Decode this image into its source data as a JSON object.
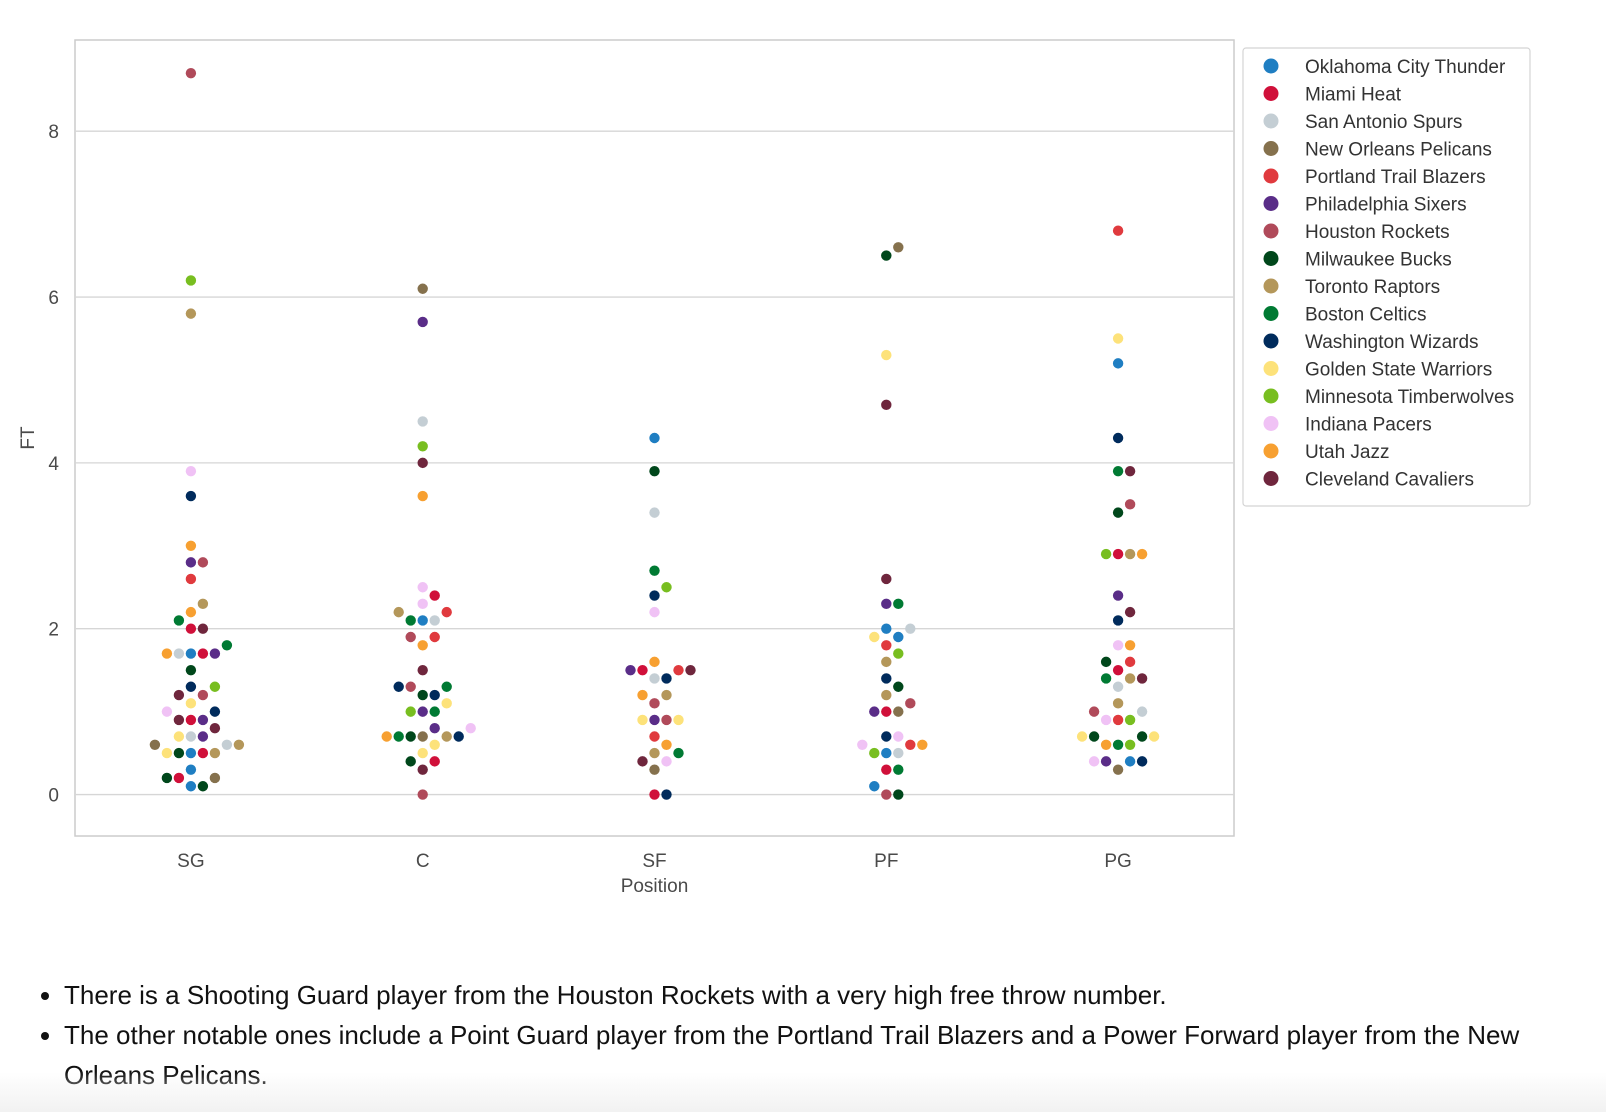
{
  "chart_data": {
    "type": "scatter",
    "xlabel": "Position",
    "ylabel": "FT",
    "categories": [
      "SG",
      "C",
      "SF",
      "PF",
      "PG"
    ],
    "ylim": [
      -0.5,
      9.1
    ],
    "yticks": [
      0,
      2,
      4,
      6,
      8
    ],
    "grid": "horizontal",
    "legend_position": "right",
    "series": [
      {
        "name": "Oklahoma City Thunder",
        "color": "#1f7ec2",
        "points": [
          {
            "x": "SG",
            "y": 1.7
          },
          {
            "x": "SG",
            "y": 0.5
          },
          {
            "x": "SG",
            "y": 0.3
          },
          {
            "x": "SG",
            "y": 0.1
          },
          {
            "x": "C",
            "y": 2.1
          },
          {
            "x": "SF",
            "y": 4.3
          },
          {
            "x": "PF",
            "y": 2.0
          },
          {
            "x": "PF",
            "y": 1.9
          },
          {
            "x": "PF",
            "y": 0.5
          },
          {
            "x": "PF",
            "y": 0.1
          },
          {
            "x": "PG",
            "y": 5.2
          },
          {
            "x": "PG",
            "y": 0.4
          }
        ]
      },
      {
        "name": "Miami Heat",
        "color": "#d0103a",
        "points": [
          {
            "x": "SG",
            "y": 2.0
          },
          {
            "x": "SG",
            "y": 1.7
          },
          {
            "x": "SG",
            "y": 0.9
          },
          {
            "x": "SG",
            "y": 0.5
          },
          {
            "x": "SG",
            "y": 0.2
          },
          {
            "x": "C",
            "y": 2.4
          },
          {
            "x": "C",
            "y": 0.4
          },
          {
            "x": "SF",
            "y": 0.0
          },
          {
            "x": "SF",
            "y": 1.5
          },
          {
            "x": "PF",
            "y": 1.0
          },
          {
            "x": "PF",
            "y": 0.3
          },
          {
            "x": "PG",
            "y": 2.9
          },
          {
            "x": "PG",
            "y": 1.5
          }
        ]
      },
      {
        "name": "San Antonio Spurs",
        "color": "#c4ced4",
        "points": [
          {
            "x": "SG",
            "y": 1.7
          },
          {
            "x": "SG",
            "y": 0.7
          },
          {
            "x": "SG",
            "y": 0.6
          },
          {
            "x": "C",
            "y": 4.5
          },
          {
            "x": "C",
            "y": 2.1
          },
          {
            "x": "SF",
            "y": 3.4
          },
          {
            "x": "SF",
            "y": 1.4
          },
          {
            "x": "PF",
            "y": 2.0
          },
          {
            "x": "PF",
            "y": 0.5
          },
          {
            "x": "PG",
            "y": 1.3
          },
          {
            "x": "PG",
            "y": 1.0
          }
        ]
      },
      {
        "name": "New Orleans Pelicans",
        "color": "#85714d",
        "points": [
          {
            "x": "SG",
            "y": 0.6
          },
          {
            "x": "SG",
            "y": 0.2
          },
          {
            "x": "C",
            "y": 6.1
          },
          {
            "x": "C",
            "y": 0.7
          },
          {
            "x": "SF",
            "y": 0.3
          },
          {
            "x": "PF",
            "y": 6.6
          },
          {
            "x": "PF",
            "y": 1.0
          },
          {
            "x": "PG",
            "y": 0.3
          }
        ]
      },
      {
        "name": "Portland Trail Blazers",
        "color": "#e03a3e",
        "points": [
          {
            "x": "SG",
            "y": 2.6
          },
          {
            "x": "C",
            "y": 2.2
          },
          {
            "x": "C",
            "y": 1.9
          },
          {
            "x": "SF",
            "y": 1.5
          },
          {
            "x": "SF",
            "y": 0.7
          },
          {
            "x": "PF",
            "y": 1.8
          },
          {
            "x": "PF",
            "y": 0.6
          },
          {
            "x": "PG",
            "y": 6.8
          },
          {
            "x": "PG",
            "y": 1.6
          },
          {
            "x": "PG",
            "y": 0.9
          }
        ]
      },
      {
        "name": "Philadelphia Sixers",
        "color": "#5a2d88",
        "points": [
          {
            "x": "SG",
            "y": 2.8
          },
          {
            "x": "SG",
            "y": 1.7
          },
          {
            "x": "SG",
            "y": 0.9
          },
          {
            "x": "SG",
            "y": 0.7
          },
          {
            "x": "C",
            "y": 5.7
          },
          {
            "x": "C",
            "y": 1.0
          },
          {
            "x": "C",
            "y": 0.8
          },
          {
            "x": "SF",
            "y": 1.5
          },
          {
            "x": "SF",
            "y": 0.9
          },
          {
            "x": "PF",
            "y": 2.3
          },
          {
            "x": "PF",
            "y": 1.0
          },
          {
            "x": "PG",
            "y": 2.4
          },
          {
            "x": "PG",
            "y": 0.4
          }
        ]
      },
      {
        "name": "Houston Rockets",
        "color": "#b04a5a",
        "points": [
          {
            "x": "SG",
            "y": 8.7
          },
          {
            "x": "SG",
            "y": 2.8
          },
          {
            "x": "SG",
            "y": 1.2
          },
          {
            "x": "C",
            "y": 1.9
          },
          {
            "x": "C",
            "y": 1.3
          },
          {
            "x": "C",
            "y": 0.0
          },
          {
            "x": "SF",
            "y": 1.1
          },
          {
            "x": "SF",
            "y": 0.9
          },
          {
            "x": "PF",
            "y": 1.1
          },
          {
            "x": "PF",
            "y": 0.0
          },
          {
            "x": "PG",
            "y": 3.5
          },
          {
            "x": "PG",
            "y": 1.0
          }
        ]
      },
      {
        "name": "Milwaukee Bucks",
        "color": "#00471b",
        "points": [
          {
            "x": "SG",
            "y": 1.5
          },
          {
            "x": "SG",
            "y": 0.5
          },
          {
            "x": "SG",
            "y": 0.2
          },
          {
            "x": "SG",
            "y": 0.1
          },
          {
            "x": "C",
            "y": 1.2
          },
          {
            "x": "C",
            "y": 0.7
          },
          {
            "x": "C",
            "y": 0.4
          },
          {
            "x": "SF",
            "y": 3.9
          },
          {
            "x": "PF",
            "y": 6.5
          },
          {
            "x": "PF",
            "y": 1.3
          },
          {
            "x": "PF",
            "y": 0.0
          },
          {
            "x": "PG",
            "y": 3.4
          },
          {
            "x": "PG",
            "y": 1.6
          },
          {
            "x": "PG",
            "y": 0.7
          },
          {
            "x": "PG",
            "y": 0.7
          }
        ]
      },
      {
        "name": "Toronto Raptors",
        "color": "#b4975a",
        "points": [
          {
            "x": "SG",
            "y": 5.8
          },
          {
            "x": "SG",
            "y": 2.3
          },
          {
            "x": "SG",
            "y": 0.6
          },
          {
            "x": "SG",
            "y": 0.5
          },
          {
            "x": "C",
            "y": 2.2
          },
          {
            "x": "C",
            "y": 0.7
          },
          {
            "x": "SF",
            "y": 1.2
          },
          {
            "x": "SF",
            "y": 0.5
          },
          {
            "x": "PF",
            "y": 1.6
          },
          {
            "x": "PF",
            "y": 1.2
          },
          {
            "x": "PG",
            "y": 2.9
          },
          {
            "x": "PG",
            "y": 1.1
          },
          {
            "x": "PG",
            "y": 1.4
          }
        ]
      },
      {
        "name": "Boston Celtics",
        "color": "#007a33",
        "points": [
          {
            "x": "SG",
            "y": 2.1
          },
          {
            "x": "SG",
            "y": 1.8
          },
          {
            "x": "C",
            "y": 2.1
          },
          {
            "x": "C",
            "y": 1.3
          },
          {
            "x": "C",
            "y": 1.0
          },
          {
            "x": "C",
            "y": 0.7
          },
          {
            "x": "SF",
            "y": 2.7
          },
          {
            "x": "SF",
            "y": 0.5
          },
          {
            "x": "PF",
            "y": 2.3
          },
          {
            "x": "PF",
            "y": 0.3
          },
          {
            "x": "PG",
            "y": 3.9
          },
          {
            "x": "PG",
            "y": 1.4
          },
          {
            "x": "PG",
            "y": 0.6
          }
        ]
      },
      {
        "name": "Washington Wizards",
        "color": "#002b5c",
        "points": [
          {
            "x": "SG",
            "y": 3.6
          },
          {
            "x": "SG",
            "y": 1.3
          },
          {
            "x": "SG",
            "y": 1.0
          },
          {
            "x": "C",
            "y": 1.3
          },
          {
            "x": "C",
            "y": 1.2
          },
          {
            "x": "C",
            "y": 0.7
          },
          {
            "x": "SF",
            "y": 2.4
          },
          {
            "x": "SF",
            "y": 1.4
          },
          {
            "x": "SF",
            "y": 0.0
          },
          {
            "x": "PF",
            "y": 1.4
          },
          {
            "x": "PF",
            "y": 0.7
          },
          {
            "x": "PG",
            "y": 4.3
          },
          {
            "x": "PG",
            "y": 2.1
          },
          {
            "x": "PG",
            "y": 0.4
          }
        ]
      },
      {
        "name": "Golden State Warriors",
        "color": "#fde27a",
        "points": [
          {
            "x": "SG",
            "y": 1.1
          },
          {
            "x": "SG",
            "y": 0.7
          },
          {
            "x": "SG",
            "y": 0.5
          },
          {
            "x": "C",
            "y": 1.1
          },
          {
            "x": "C",
            "y": 0.6
          },
          {
            "x": "C",
            "y": 0.5
          },
          {
            "x": "SF",
            "y": 0.9
          },
          {
            "x": "SF",
            "y": 0.9
          },
          {
            "x": "PF",
            "y": 5.3
          },
          {
            "x": "PF",
            "y": 1.9
          },
          {
            "x": "PG",
            "y": 5.5
          },
          {
            "x": "PG",
            "y": 0.7
          },
          {
            "x": "PG",
            "y": 0.7
          }
        ]
      },
      {
        "name": "Minnesota Timberwolves",
        "color": "#78be20",
        "points": [
          {
            "x": "SG",
            "y": 6.2
          },
          {
            "x": "SG",
            "y": 1.3
          },
          {
            "x": "C",
            "y": 4.2
          },
          {
            "x": "C",
            "y": 1.0
          },
          {
            "x": "SF",
            "y": 2.5
          },
          {
            "x": "PF",
            "y": 1.7
          },
          {
            "x": "PF",
            "y": 0.5
          },
          {
            "x": "PG",
            "y": 2.9
          },
          {
            "x": "PG",
            "y": 0.9
          },
          {
            "x": "PG",
            "y": 0.6
          }
        ]
      },
      {
        "name": "Indiana Pacers",
        "color": "#f0c2f5",
        "points": [
          {
            "x": "SG",
            "y": 3.9
          },
          {
            "x": "SG",
            "y": 1.0
          },
          {
            "x": "C",
            "y": 2.5
          },
          {
            "x": "C",
            "y": 2.3
          },
          {
            "x": "C",
            "y": 0.8
          },
          {
            "x": "SF",
            "y": 2.2
          },
          {
            "x": "SF",
            "y": 0.4
          },
          {
            "x": "PF",
            "y": 0.7
          },
          {
            "x": "PF",
            "y": 0.6
          },
          {
            "x": "PG",
            "y": 1.8
          },
          {
            "x": "PG",
            "y": 0.9
          },
          {
            "x": "PG",
            "y": 0.4
          }
        ]
      },
      {
        "name": "Utah Jazz",
        "color": "#f7a031",
        "points": [
          {
            "x": "SG",
            "y": 3.0
          },
          {
            "x": "SG",
            "y": 2.2
          },
          {
            "x": "SG",
            "y": 1.7
          },
          {
            "x": "C",
            "y": 3.6
          },
          {
            "x": "C",
            "y": 1.8
          },
          {
            "x": "C",
            "y": 0.7
          },
          {
            "x": "SF",
            "y": 1.6
          },
          {
            "x": "SF",
            "y": 1.2
          },
          {
            "x": "SF",
            "y": 0.6
          },
          {
            "x": "PF",
            "y": 0.6
          },
          {
            "x": "PG",
            "y": 2.9
          },
          {
            "x": "PG",
            "y": 1.8
          },
          {
            "x": "PG",
            "y": 0.6
          }
        ]
      },
      {
        "name": "Cleveland Cavaliers",
        "color": "#6f263d",
        "points": [
          {
            "x": "SG",
            "y": 2.0
          },
          {
            "x": "SG",
            "y": 1.2
          },
          {
            "x": "SG",
            "y": 0.9
          },
          {
            "x": "SG",
            "y": 0.8
          },
          {
            "x": "C",
            "y": 4.0
          },
          {
            "x": "C",
            "y": 1.5
          },
          {
            "x": "C",
            "y": 0.3
          },
          {
            "x": "SF",
            "y": 1.5
          },
          {
            "x": "SF",
            "y": 0.4
          },
          {
            "x": "PF",
            "y": 4.7
          },
          {
            "x": "PF",
            "y": 2.6
          },
          {
            "x": "PG",
            "y": 3.9
          },
          {
            "x": "PG",
            "y": 2.2
          },
          {
            "x": "PG",
            "y": 1.4
          }
        ]
      }
    ]
  },
  "notes": [
    "There is a Shooting Guard player from the Houston Rockets with a very high free throw number.",
    "The other notable ones include a Point Guard player from the Portland Trail Blazers and a Power Forward player from the New Orleans Pelicans."
  ]
}
